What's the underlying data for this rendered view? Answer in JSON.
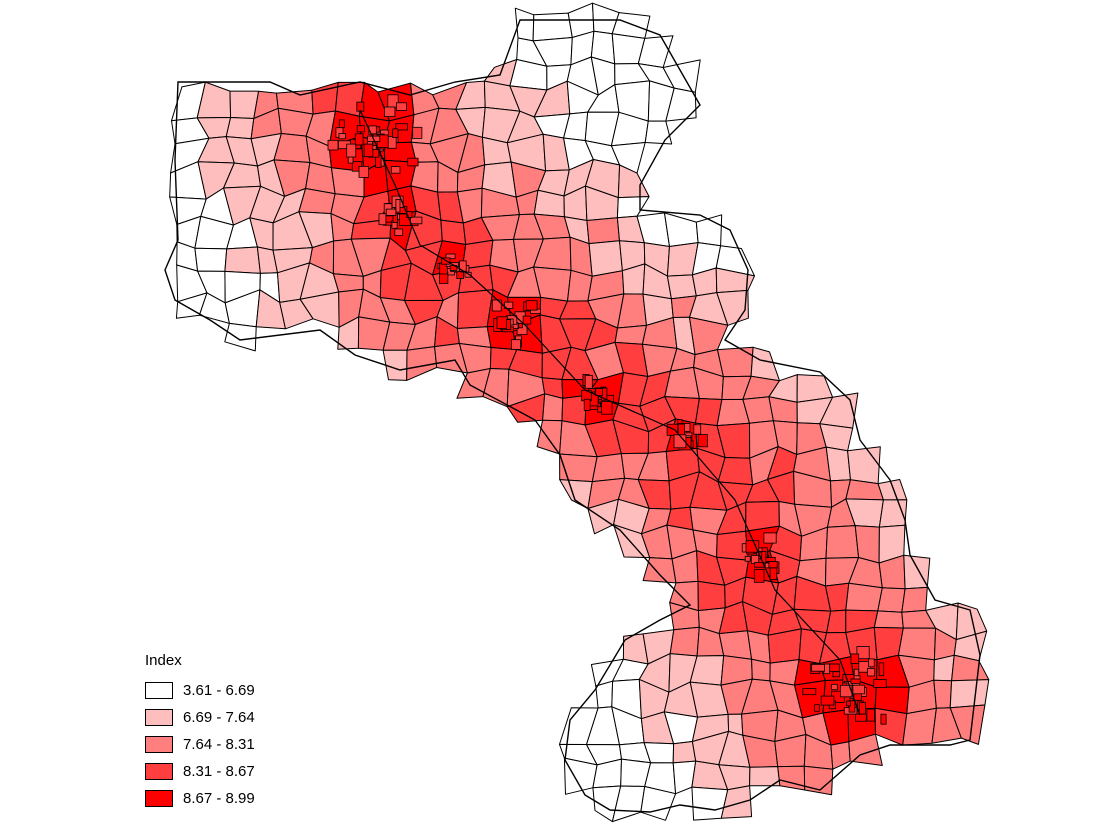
{
  "legend": {
    "title": "Index",
    "classes": [
      {
        "label": "3.61 - 6.69",
        "color": "#ffffff"
      },
      {
        "label": "6.69 - 7.64",
        "color": "#ffbebe"
      },
      {
        "label": "7.64 - 8.31",
        "color": "#ff7f7f"
      },
      {
        "label": "8.31 - 8.67",
        "color": "#ff3f3f"
      },
      {
        "label": "8.67 - 8.99",
        "color": "#ff0000"
      }
    ]
  },
  "map": {
    "stroke_color": "#000000",
    "background_color": "#ffffff"
  }
}
